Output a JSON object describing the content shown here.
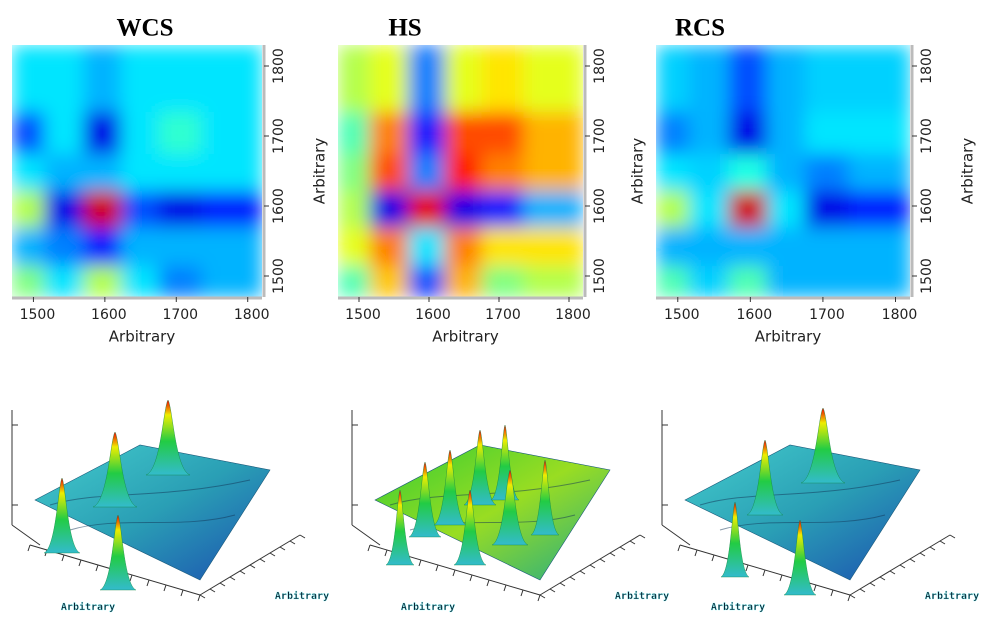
{
  "chart_data": [
    {
      "type": "heatmap",
      "title": "WCS",
      "xlabel": "Arbitrary",
      "ylabel": "Arbitrary",
      "x": [
        1495,
        1535,
        1605,
        1640,
        1710,
        1760
      ],
      "y": [
        1495,
        1535,
        1605,
        1640,
        1710,
        1760
      ],
      "z": [
        [
          0.5,
          0.35,
          0.55,
          0.35,
          0.25,
          0.3
        ],
        [
          0.3,
          0.25,
          0.15,
          0.3,
          0.3,
          0.3
        ],
        [
          0.55,
          0.1,
          0.92,
          0.2,
          0.1,
          0.15
        ],
        [
          0.35,
          0.3,
          0.3,
          0.35,
          0.35,
          0.35
        ],
        [
          0.2,
          0.35,
          0.1,
          0.35,
          0.42,
          0.35
        ],
        [
          0.35,
          0.35,
          0.3,
          0.35,
          0.35,
          0.35
        ]
      ],
      "colormap": "jet",
      "zlim": [
        0,
        1
      ],
      "xlim": [
        1470,
        1820
      ],
      "ylim": [
        1470,
        1830
      ],
      "xticks": [
        1500,
        1600,
        1700,
        1800
      ],
      "yticks": [
        1500,
        1600,
        1700,
        1800
      ]
    },
    {
      "type": "heatmap",
      "title": "HS",
      "xlabel": "Arbitrary",
      "ylabel": "Arbitrary",
      "x": [
        1495,
        1535,
        1605,
        1640,
        1710,
        1760
      ],
      "y": [
        1495,
        1535,
        1605,
        1640,
        1710,
        1760
      ],
      "z": [
        [
          0.45,
          0.68,
          0.2,
          0.7,
          0.5,
          0.55
        ],
        [
          0.6,
          0.75,
          0.35,
          0.75,
          0.65,
          0.65
        ],
        [
          0.55,
          0.1,
          0.9,
          0.1,
          0.15,
          0.3
        ],
        [
          0.5,
          0.8,
          0.25,
          0.85,
          0.75,
          0.7
        ],
        [
          0.45,
          0.75,
          0.15,
          0.8,
          0.8,
          0.7
        ],
        [
          0.55,
          0.6,
          0.25,
          0.6,
          0.65,
          0.6
        ]
      ],
      "colormap": "jet",
      "zlim": [
        0,
        1
      ],
      "xlim": [
        1470,
        1820
      ],
      "ylim": [
        1470,
        1830
      ],
      "xticks": [
        1500,
        1600,
        1700,
        1800
      ],
      "yticks": [
        1500,
        1600,
        1700,
        1800
      ]
    },
    {
      "type": "heatmap",
      "title": "RCS",
      "xlabel": "Arbitrary",
      "ylabel": "Arbitrary",
      "x": [
        1495,
        1535,
        1605,
        1640,
        1710,
        1760
      ],
      "y": [
        1495,
        1535,
        1605,
        1640,
        1710,
        1760
      ],
      "z": [
        [
          0.45,
          0.33,
          0.45,
          0.3,
          0.3,
          0.3
        ],
        [
          0.3,
          0.3,
          0.3,
          0.3,
          0.3,
          0.3
        ],
        [
          0.55,
          0.35,
          0.92,
          0.35,
          0.1,
          0.15
        ],
        [
          0.35,
          0.33,
          0.4,
          0.3,
          0.25,
          0.3
        ],
        [
          0.25,
          0.3,
          0.1,
          0.3,
          0.35,
          0.35
        ],
        [
          0.33,
          0.3,
          0.2,
          0.3,
          0.33,
          0.33
        ]
      ],
      "colormap": "jet",
      "zlim": [
        0,
        1
      ],
      "xlim": [
        1470,
        1820
      ],
      "ylim": [
        1470,
        1830
      ],
      "xticks": [
        1500,
        1600,
        1700,
        1800
      ],
      "yticks": [
        1500,
        1600,
        1700,
        1800
      ]
    },
    {
      "type": "surface",
      "xlabel": "Arbitrary",
      "ylabel": "Arbitrary"
    },
    {
      "type": "surface",
      "xlabel": "Arbitrary",
      "ylabel": "Arbitrary"
    },
    {
      "type": "surface",
      "xlabel": "Arbitrary",
      "ylabel": "Arbitrary"
    }
  ]
}
